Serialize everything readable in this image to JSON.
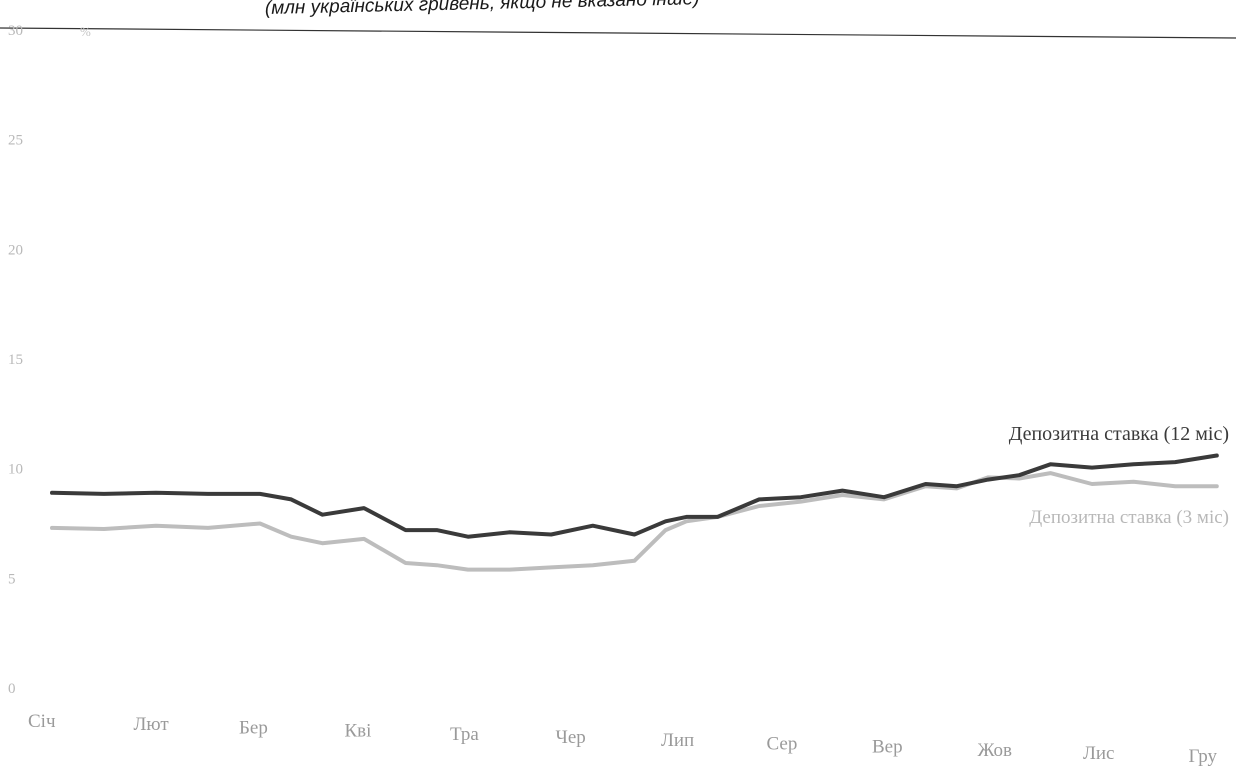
{
  "subtitle": "(млн українських гривень, якщо не вказано інше)",
  "chart_data": {
    "type": "line",
    "y_unit": "%",
    "ylim": [
      0,
      30
    ],
    "yticks": [
      0,
      5,
      10,
      15,
      20,
      25,
      30
    ],
    "grid": false,
    "categories": [
      "Січ",
      "Лют",
      "Бер",
      "Кві",
      "Тра",
      "Чер",
      "Лип",
      "Сер",
      "Вер",
      "Жов",
      "Лис",
      "Гру"
    ],
    "series": [
      {
        "name": "Депозитна ставка (12 міс)",
        "color": "#3a3a3a",
        "x": [
          0,
          0.5,
          1,
          1.5,
          2,
          2.3,
          2.6,
          3,
          3.4,
          3.7,
          4,
          4.4,
          4.8,
          5.2,
          5.6,
          5.9,
          6.1,
          6.4,
          6.8,
          7.2,
          7.6,
          8,
          8.4,
          8.7,
          9,
          9.3,
          9.6,
          10,
          10.4,
          10.8,
          11.2
        ],
        "values": [
          8.9,
          8.85,
          8.9,
          8.85,
          8.85,
          8.6,
          7.9,
          8.2,
          7.2,
          7.2,
          6.9,
          7.1,
          7.0,
          7.4,
          7.0,
          7.6,
          7.8,
          7.8,
          8.6,
          8.7,
          9.0,
          8.7,
          9.3,
          9.2,
          9.5,
          9.7,
          10.2,
          10.05,
          10.2,
          10.3,
          10.6
        ]
      },
      {
        "name": "Депозитна ставка (3 міс)",
        "color": "#bdbdbd",
        "x": [
          0,
          0.5,
          1,
          1.5,
          2,
          2.3,
          2.6,
          3,
          3.4,
          3.7,
          4,
          4.4,
          4.8,
          5.2,
          5.6,
          5.9,
          6.1,
          6.4,
          6.8,
          7.2,
          7.6,
          8,
          8.4,
          8.7,
          9,
          9.3,
          9.6,
          10,
          10.4,
          10.8,
          11.2
        ],
        "values": [
          7.3,
          7.25,
          7.4,
          7.3,
          7.5,
          6.9,
          6.6,
          6.8,
          5.7,
          5.6,
          5.4,
          5.4,
          5.5,
          5.6,
          5.8,
          7.2,
          7.6,
          7.8,
          8.3,
          8.5,
          8.8,
          8.6,
          9.2,
          9.1,
          9.6,
          9.55,
          9.8,
          9.3,
          9.4,
          9.2,
          9.2
        ]
      }
    ]
  }
}
